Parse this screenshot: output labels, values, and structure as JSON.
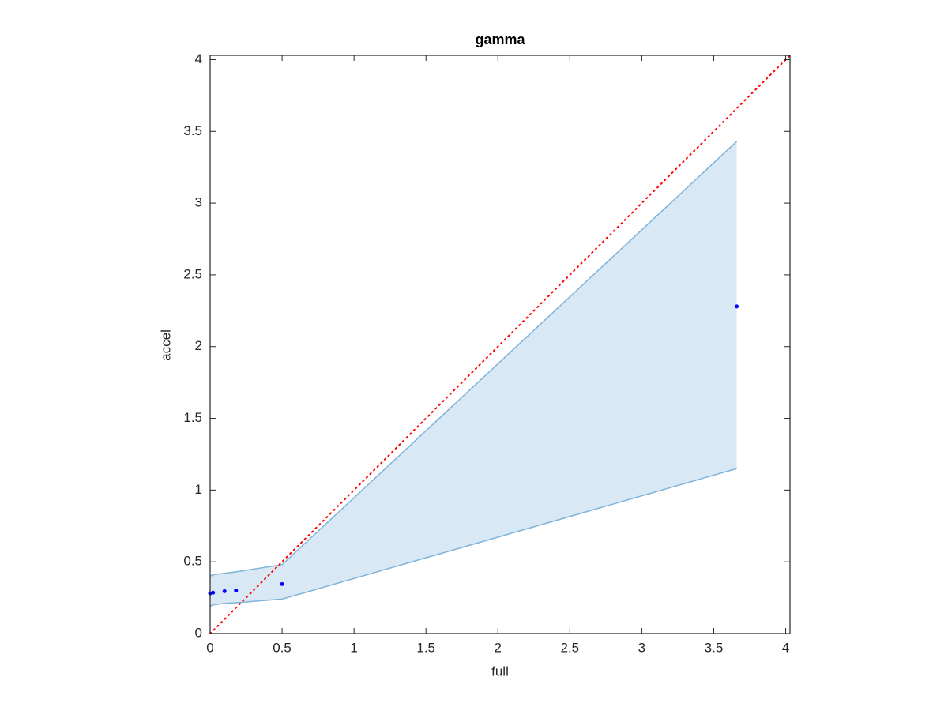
{
  "chart_data": {
    "type": "scatter",
    "title": "gamma",
    "x_label": "full",
    "y_label": "accel",
    "x": [
      0,
      0.02,
      0.1,
      0.18,
      0.5,
      3.66
    ],
    "values": [
      0.28,
      0.285,
      0.295,
      0.3,
      0.345,
      2.28
    ],
    "color": "#0000ff",
    "band_upper": [
      0.4,
      0.41,
      0.42,
      0.43,
      0.48,
      3.43
    ],
    "band_lower": [
      0.19,
      0.2,
      0.21,
      0.215,
      0.24,
      1.15
    ],
    "band_color": "#7fb3d9",
    "diagonal_color": "#ff0000",
    "xlim": [
      0,
      4.03
    ],
    "ylim": [
      0,
      4.03
    ],
    "xticks": [
      0,
      0.5,
      1,
      1.5,
      2,
      2.5,
      3,
      3.5,
      4
    ],
    "yticks": [
      0,
      0.5,
      1,
      1.5,
      2,
      2.5,
      3,
      3.5,
      4
    ],
    "grid": false
  }
}
